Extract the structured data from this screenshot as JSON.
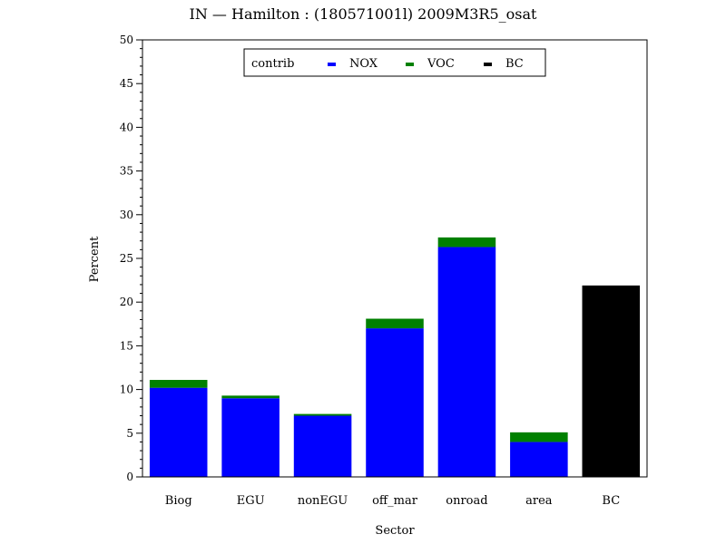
{
  "chart_data": {
    "type": "bar",
    "stacked": true,
    "title": "IN  —  Hamilton  :  (180571001l)  2009M3R5_osat",
    "xlabel": "Sector",
    "ylabel": "Percent",
    "ylim": [
      0,
      50
    ],
    "yticks": [
      0,
      5,
      10,
      15,
      20,
      25,
      30,
      35,
      40,
      45,
      50
    ],
    "categories": [
      "Biog",
      "EGU",
      "nonEGU",
      "off_mar",
      "onroad",
      "area",
      "BC"
    ],
    "series": [
      {
        "name": "NOX",
        "color": "#0000ff",
        "values": [
          10.2,
          9.0,
          7.0,
          17.0,
          26.3,
          4.0,
          0
        ]
      },
      {
        "name": "VOC",
        "color": "#008000",
        "values": [
          0.9,
          0.3,
          0.2,
          1.1,
          1.1,
          1.1,
          0
        ]
      },
      {
        "name": "BC",
        "color": "#000000",
        "values": [
          0,
          0,
          0,
          0,
          0,
          0,
          21.9
        ]
      }
    ],
    "legend": {
      "position": "top-center",
      "title": "contrib"
    },
    "grid": false
  }
}
